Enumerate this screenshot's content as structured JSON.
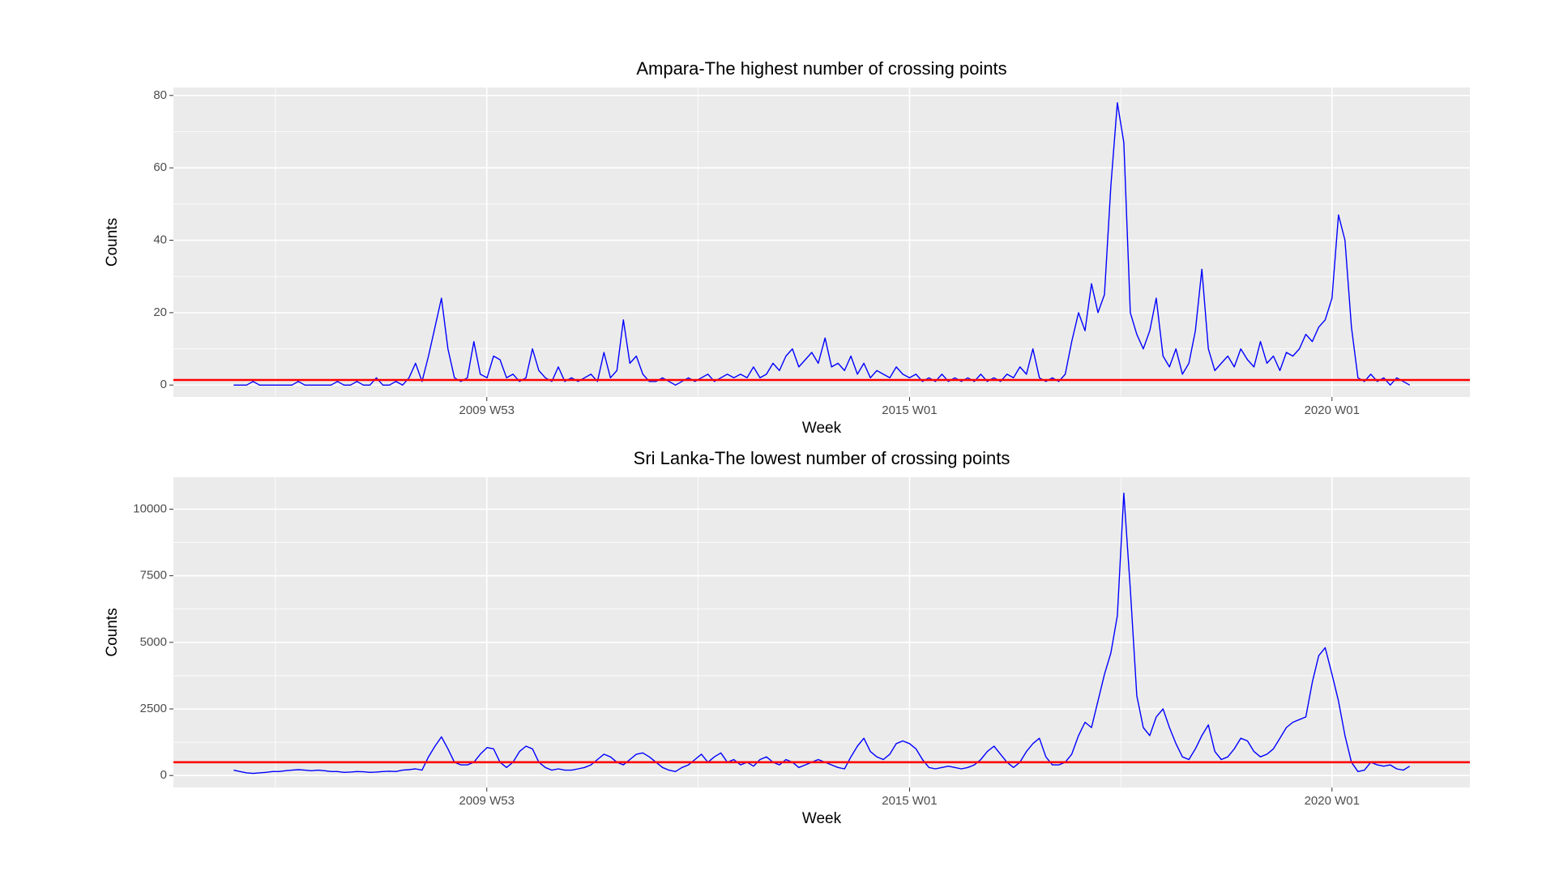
{
  "chart_data": [
    {
      "type": "line",
      "title": "Ampara-The highest number of crossing points",
      "x_label": "Week",
      "y_label": "Counts",
      "x": [
        "2007 W01",
        "2007 W05",
        "2007 W09",
        "2007 W13",
        "2007 W17",
        "2007 W21",
        "2007 W25",
        "2007 W29",
        "2007 W33",
        "2007 W37",
        "2007 W41",
        "2007 W45",
        "2007 W49",
        "2008 W01",
        "2008 W05",
        "2008 W09",
        "2008 W13",
        "2008 W17",
        "2008 W21",
        "2008 W25",
        "2008 W29",
        "2008 W33",
        "2008 W37",
        "2008 W41",
        "2008 W45",
        "2008 W49",
        "2009 W01",
        "2009 W05",
        "2009 W09",
        "2009 W13",
        "2009 W17",
        "2009 W21",
        "2009 W25",
        "2009 W29",
        "2009 W33",
        "2009 W37",
        "2009 W41",
        "2009 W45",
        "2009 W49",
        "2010 W01",
        "2010 W05",
        "2010 W09",
        "2010 W13",
        "2010 W17",
        "2010 W21",
        "2010 W25",
        "2010 W29",
        "2010 W33",
        "2010 W37",
        "2010 W41",
        "2010 W45",
        "2010 W49",
        "2011 W01",
        "2011 W05",
        "2011 W09",
        "2011 W13",
        "2011 W17",
        "2011 W21",
        "2011 W25",
        "2011 W29",
        "2011 W33",
        "2011 W37",
        "2011 W41",
        "2011 W45",
        "2011 W49",
        "2012 W01",
        "2012 W05",
        "2012 W09",
        "2012 W13",
        "2012 W17",
        "2012 W21",
        "2012 W25",
        "2012 W29",
        "2012 W33",
        "2012 W37",
        "2012 W41",
        "2012 W45",
        "2012 W49",
        "2013 W01",
        "2013 W05",
        "2013 W09",
        "2013 W13",
        "2013 W17",
        "2013 W21",
        "2013 W25",
        "2013 W29",
        "2013 W33",
        "2013 W37",
        "2013 W41",
        "2013 W45",
        "2013 W49",
        "2014 W01",
        "2014 W05",
        "2014 W09",
        "2014 W13",
        "2014 W17",
        "2014 W21",
        "2014 W25",
        "2014 W29",
        "2014 W33",
        "2014 W37",
        "2014 W41",
        "2014 W45",
        "2014 W49",
        "2015 W01",
        "2015 W05",
        "2015 W09",
        "2015 W13",
        "2015 W17",
        "2015 W21",
        "2015 W25",
        "2015 W29",
        "2015 W33",
        "2015 W37",
        "2015 W41",
        "2015 W45",
        "2015 W49",
        "2016 W01",
        "2016 W05",
        "2016 W09",
        "2016 W13",
        "2016 W17",
        "2016 W21",
        "2016 W25",
        "2016 W29",
        "2016 W33",
        "2016 W37",
        "2016 W41",
        "2016 W45",
        "2016 W49",
        "2017 W01",
        "2017 W05",
        "2017 W09",
        "2017 W13",
        "2017 W17",
        "2017 W21",
        "2017 W25",
        "2017 W29",
        "2017 W33",
        "2017 W37",
        "2017 W41",
        "2017 W45",
        "2017 W49",
        "2018 W01",
        "2018 W05",
        "2018 W09",
        "2018 W13",
        "2018 W17",
        "2018 W21",
        "2018 W25",
        "2018 W29",
        "2018 W33",
        "2018 W37",
        "2018 W41",
        "2018 W45",
        "2018 W49",
        "2019 W01",
        "2019 W05",
        "2019 W09",
        "2019 W13",
        "2019 W17",
        "2019 W21",
        "2019 W25",
        "2019 W29",
        "2019 W33",
        "2019 W37",
        "2019 W41",
        "2019 W45",
        "2019 W49",
        "2020 W01",
        "2020 W05",
        "2020 W09",
        "2020 W13",
        "2020 W17",
        "2020 W21",
        "2020 W25",
        "2020 W29",
        "2020 W33",
        "2020 W37",
        "2020 W41",
        "2020 W45",
        "2020 W49"
      ],
      "values": [
        0,
        0,
        0,
        1,
        0,
        0,
        0,
        0,
        0,
        0,
        1,
        0,
        0,
        0,
        0,
        0,
        1,
        0,
        0,
        1,
        0,
        0,
        2,
        0,
        0,
        1,
        0,
        2,
        6,
        1,
        8,
        16,
        24,
        10,
        2,
        1,
        2,
        12,
        3,
        2,
        8,
        7,
        2,
        3,
        1,
        2,
        10,
        4,
        2,
        1,
        5,
        1,
        2,
        1,
        2,
        3,
        1,
        9,
        2,
        4,
        18,
        6,
        8,
        3,
        1,
        1,
        2,
        1,
        0,
        1,
        2,
        1,
        2,
        3,
        1,
        2,
        3,
        2,
        3,
        2,
        5,
        2,
        3,
        6,
        4,
        8,
        10,
        5,
        7,
        9,
        6,
        13,
        5,
        6,
        4,
        8,
        3,
        6,
        2,
        4,
        3,
        2,
        5,
        3,
        2,
        3,
        1,
        2,
        1,
        3,
        1,
        2,
        1,
        2,
        1,
        3,
        1,
        2,
        1,
        3,
        2,
        5,
        3,
        10,
        2,
        1,
        2,
        1,
        3,
        12,
        20,
        15,
        28,
        20,
        25,
        55,
        78,
        67,
        20,
        14,
        10,
        15,
        24,
        8,
        5,
        10,
        3,
        6,
        15,
        32,
        10,
        4,
        6,
        8,
        5,
        10,
        7,
        5,
        12,
        6,
        8,
        4,
        9,
        8,
        10,
        14,
        12,
        16,
        18,
        24,
        47,
        40,
        16,
        2,
        1,
        3,
        1,
        2,
        0,
        2,
        1,
        0
      ],
      "color": "#0000ff",
      "hline": {
        "value": 1.4,
        "color": "#ff0000"
      },
      "xlim": [
        "2006 W16",
        "2021 W34"
      ],
      "xticks": [
        "2009 W53",
        "2015 W01",
        "2020 W01"
      ],
      "ylim": [
        -3.3,
        82.2
      ],
      "yticks": [
        0,
        20,
        40,
        60,
        80
      ],
      "grid": true
    },
    {
      "type": "line",
      "title": "Sri Lanka-The lowest number of crossing points",
      "x_label": "Week",
      "y_label": "Counts",
      "x": [
        "2007 W01",
        "2007 W05",
        "2007 W09",
        "2007 W13",
        "2007 W17",
        "2007 W21",
        "2007 W25",
        "2007 W29",
        "2007 W33",
        "2007 W37",
        "2007 W41",
        "2007 W45",
        "2007 W49",
        "2008 W01",
        "2008 W05",
        "2008 W09",
        "2008 W13",
        "2008 W17",
        "2008 W21",
        "2008 W25",
        "2008 W29",
        "2008 W33",
        "2008 W37",
        "2008 W41",
        "2008 W45",
        "2008 W49",
        "2009 W01",
        "2009 W05",
        "2009 W09",
        "2009 W13",
        "2009 W17",
        "2009 W21",
        "2009 W25",
        "2009 W29",
        "2009 W33",
        "2009 W37",
        "2009 W41",
        "2009 W45",
        "2009 W49",
        "2010 W01",
        "2010 W05",
        "2010 W09",
        "2010 W13",
        "2010 W17",
        "2010 W21",
        "2010 W25",
        "2010 W29",
        "2010 W33",
        "2010 W37",
        "2010 W41",
        "2010 W45",
        "2010 W49",
        "2011 W01",
        "2011 W05",
        "2011 W09",
        "2011 W13",
        "2011 W17",
        "2011 W21",
        "2011 W25",
        "2011 W29",
        "2011 W33",
        "2011 W37",
        "2011 W41",
        "2011 W45",
        "2011 W49",
        "2012 W01",
        "2012 W05",
        "2012 W09",
        "2012 W13",
        "2012 W17",
        "2012 W21",
        "2012 W25",
        "2012 W29",
        "2012 W33",
        "2012 W37",
        "2012 W41",
        "2012 W45",
        "2012 W49",
        "2013 W01",
        "2013 W05",
        "2013 W09",
        "2013 W13",
        "2013 W17",
        "2013 W21",
        "2013 W25",
        "2013 W29",
        "2013 W33",
        "2013 W37",
        "2013 W41",
        "2013 W45",
        "2013 W49",
        "2014 W01",
        "2014 W05",
        "2014 W09",
        "2014 W13",
        "2014 W17",
        "2014 W21",
        "2014 W25",
        "2014 W29",
        "2014 W33",
        "2014 W37",
        "2014 W41",
        "2014 W45",
        "2014 W49",
        "2015 W01",
        "2015 W05",
        "2015 W09",
        "2015 W13",
        "2015 W17",
        "2015 W21",
        "2015 W25",
        "2015 W29",
        "2015 W33",
        "2015 W37",
        "2015 W41",
        "2015 W45",
        "2015 W49",
        "2016 W01",
        "2016 W05",
        "2016 W09",
        "2016 W13",
        "2016 W17",
        "2016 W21",
        "2016 W25",
        "2016 W29",
        "2016 W33",
        "2016 W37",
        "2016 W41",
        "2016 W45",
        "2016 W49",
        "2017 W01",
        "2017 W05",
        "2017 W09",
        "2017 W13",
        "2017 W17",
        "2017 W21",
        "2017 W25",
        "2017 W29",
        "2017 W33",
        "2017 W37",
        "2017 W41",
        "2017 W45",
        "2017 W49",
        "2018 W01",
        "2018 W05",
        "2018 W09",
        "2018 W13",
        "2018 W17",
        "2018 W21",
        "2018 W25",
        "2018 W29",
        "2018 W33",
        "2018 W37",
        "2018 W41",
        "2018 W45",
        "2018 W49",
        "2019 W01",
        "2019 W05",
        "2019 W09",
        "2019 W13",
        "2019 W17",
        "2019 W21",
        "2019 W25",
        "2019 W29",
        "2019 W33",
        "2019 W37",
        "2019 W41",
        "2019 W45",
        "2019 W49",
        "2020 W01",
        "2020 W05",
        "2020 W09",
        "2020 W13",
        "2020 W17",
        "2020 W21",
        "2020 W25",
        "2020 W29",
        "2020 W33",
        "2020 W37",
        "2020 W41",
        "2020 W45",
        "2020 W49"
      ],
      "values": [
        200,
        150,
        100,
        80,
        100,
        120,
        150,
        150,
        180,
        200,
        220,
        200,
        180,
        200,
        180,
        150,
        150,
        120,
        130,
        150,
        140,
        120,
        130,
        150,
        160,
        150,
        200,
        220,
        250,
        200,
        700,
        1100,
        1450,
        1000,
        500,
        400,
        400,
        500,
        800,
        1050,
        1000,
        500,
        300,
        500,
        900,
        1100,
        1000,
        500,
        300,
        200,
        250,
        200,
        200,
        250,
        300,
        400,
        600,
        800,
        700,
        500,
        400,
        600,
        800,
        850,
        700,
        500,
        300,
        200,
        150,
        300,
        400,
        600,
        800,
        500,
        700,
        850,
        500,
        600,
        400,
        500,
        350,
        600,
        700,
        500,
        400,
        600,
        500,
        300,
        400,
        500,
        600,
        500,
        400,
        300,
        250,
        700,
        1100,
        1400,
        900,
        700,
        600,
        800,
        1200,
        1300,
        1200,
        1000,
        600,
        300,
        250,
        300,
        350,
        300,
        250,
        300,
        400,
        600,
        900,
        1100,
        800,
        500,
        300,
        500,
        900,
        1200,
        1400,
        700,
        400,
        400,
        500,
        800,
        1500,
        2000,
        1800,
        2800,
        3800,
        4600,
        6000,
        10600,
        7000,
        3000,
        1800,
        1500,
        2200,
        2500,
        1800,
        1200,
        700,
        600,
        1000,
        1500,
        1900,
        900,
        600,
        700,
        1000,
        1400,
        1300,
        900,
        700,
        800,
        1000,
        1400,
        1800,
        2000,
        2100,
        2200,
        3500,
        4500,
        4800,
        3800,
        2800,
        1500,
        500,
        150,
        200,
        500,
        400,
        350,
        400,
        250,
        200,
        350
      ],
      "color": "#0000ff",
      "hline": {
        "value": 500,
        "color": "#ff0000"
      },
      "xlim": [
        "2006 W16",
        "2021 W34"
      ],
      "xticks": [
        "2009 W53",
        "2015 W01",
        "2020 W01"
      ],
      "ylim": [
        -450,
        11200
      ],
      "yticks": [
        0,
        2500,
        5000,
        7500,
        10000
      ],
      "grid": true
    }
  ]
}
